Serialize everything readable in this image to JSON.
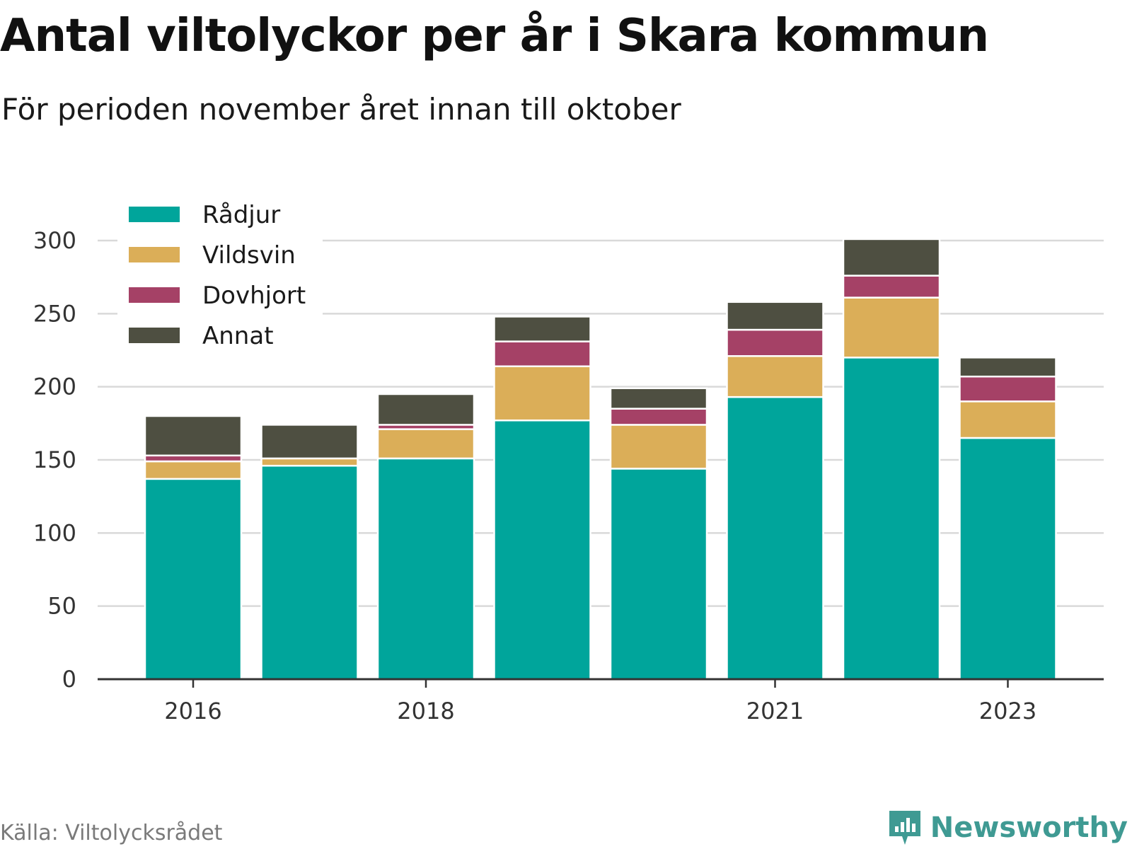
{
  "chart_data": {
    "type": "bar",
    "stacked": true,
    "title": "Antal viltolyckor per år i Skara kommun",
    "subtitle": "För perioden november året innan till oktober",
    "source": "Källa: Viltolycksrådet",
    "brand": "Newsworthy",
    "categories": [
      "2016",
      "2017",
      "2018",
      "2019",
      "2020",
      "2021",
      "2022",
      "2023"
    ],
    "x_tick_labels": [
      "2016",
      "2018",
      "2021",
      "2023"
    ],
    "series": [
      {
        "name": "Rådjur",
        "color": "#00a59b",
        "values": [
          137,
          146,
          151,
          177,
          144,
          193,
          220,
          165
        ]
      },
      {
        "name": "Vildsvin",
        "color": "#dbae58",
        "values": [
          12,
          5,
          20,
          37,
          30,
          28,
          41,
          25
        ]
      },
      {
        "name": "Dovhjort",
        "color": "#a54166",
        "values": [
          4,
          0,
          3,
          17,
          11,
          18,
          15,
          17
        ]
      },
      {
        "name": "Annat",
        "color": "#4e4f41",
        "values": [
          27,
          23,
          21,
          17,
          14,
          19,
          25,
          13
        ]
      }
    ],
    "ylim": [
      0,
      300
    ],
    "yticks": [
      0,
      50,
      100,
      150,
      200,
      250,
      300
    ],
    "xlabel": "",
    "ylabel": "",
    "grid": true,
    "legend_position": "top-left"
  }
}
